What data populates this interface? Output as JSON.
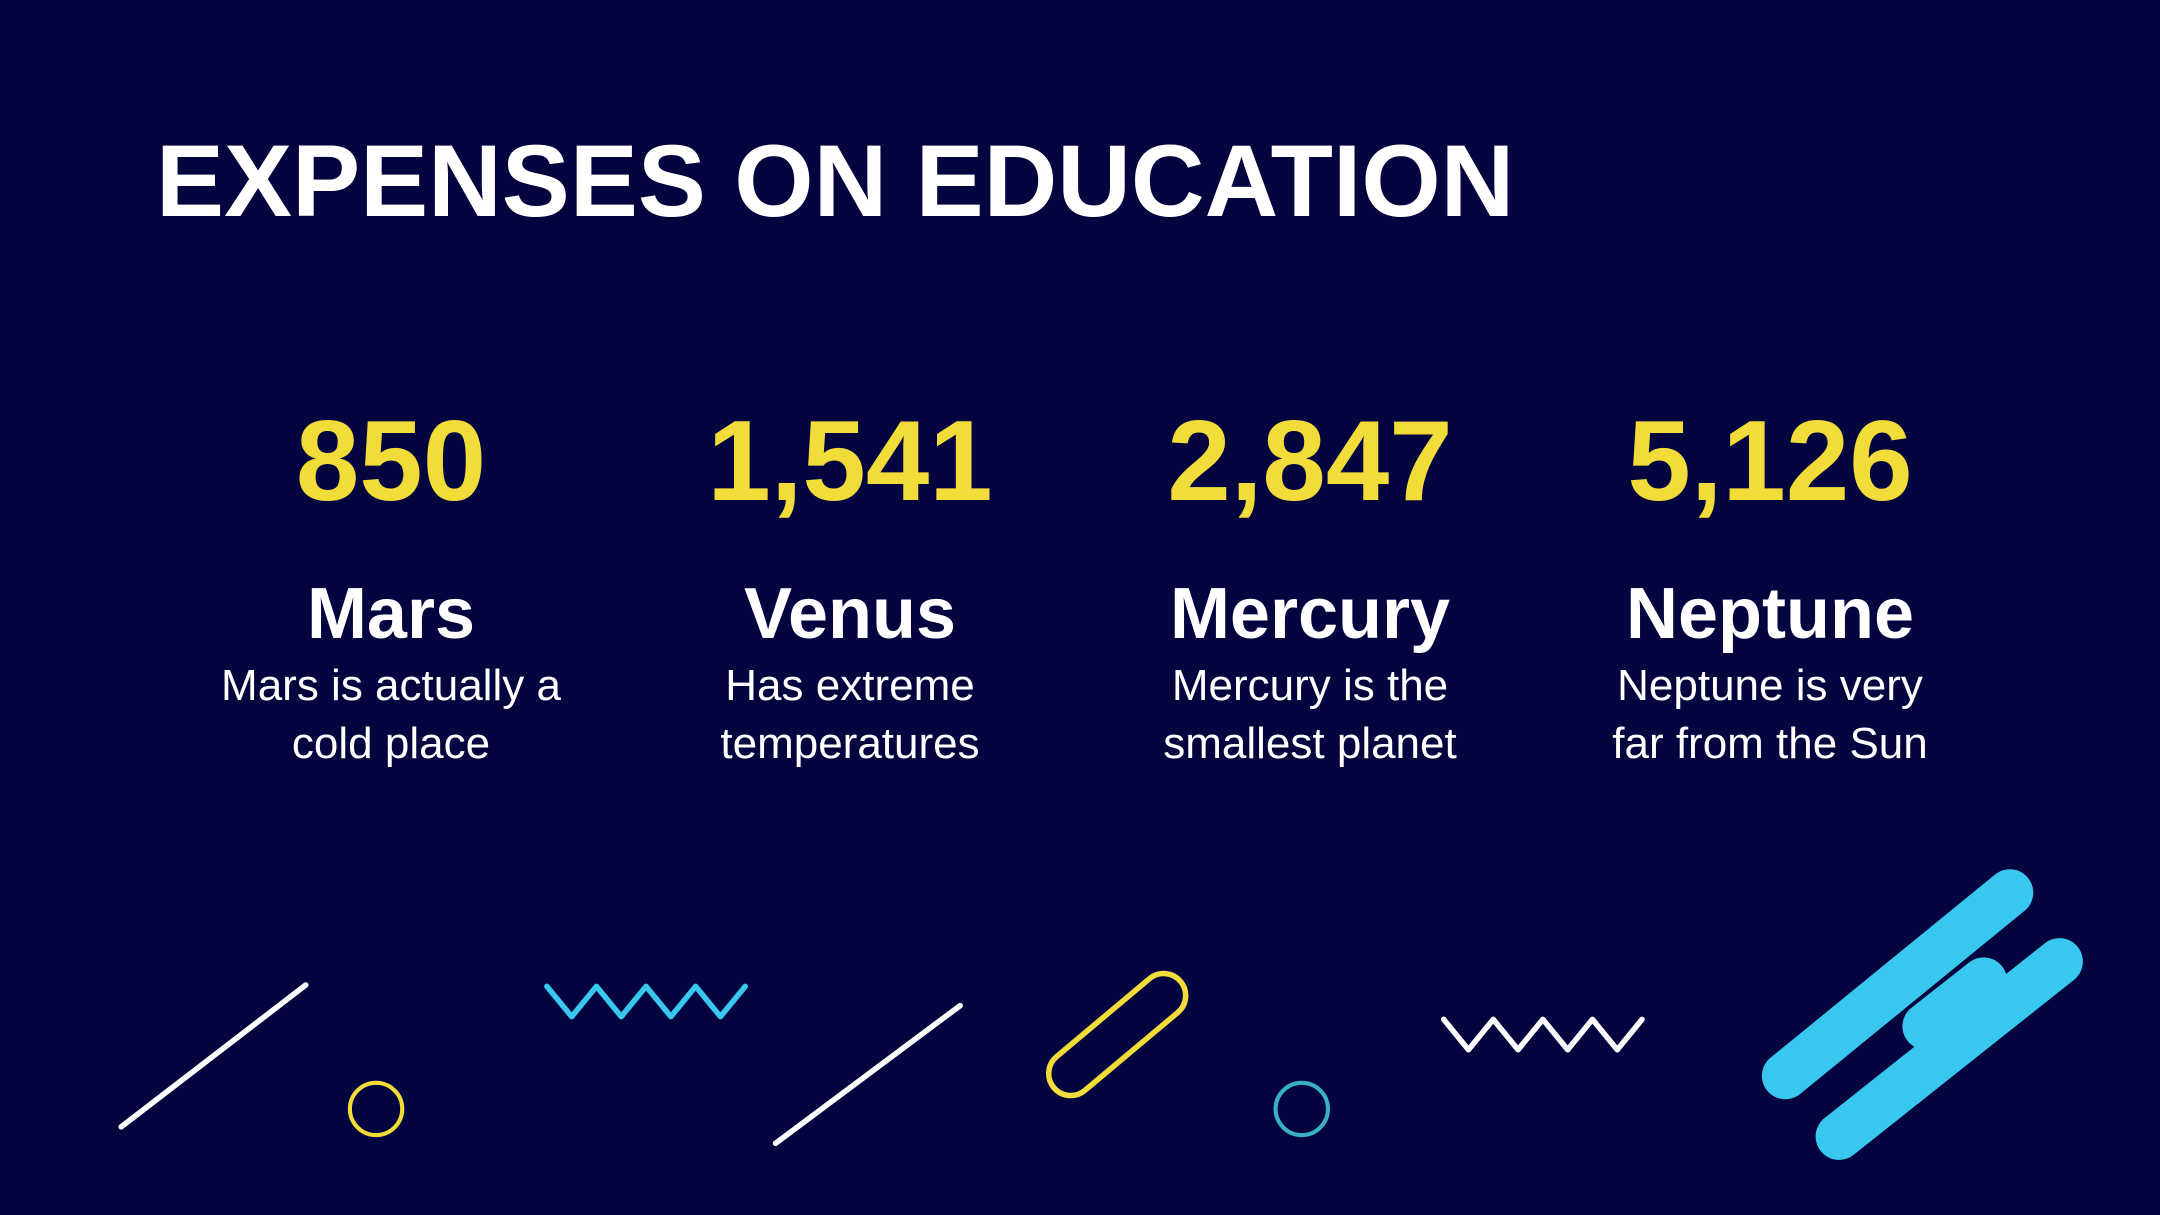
{
  "title": "EXPENSES ON EDUCATION",
  "stats": [
    {
      "value": "850",
      "name": "Mars",
      "description": [
        "Mars is actually a",
        "cold place"
      ]
    },
    {
      "value": "1,541",
      "name": "Venus",
      "description": [
        "Has extreme",
        "temperatures"
      ]
    },
    {
      "value": "2,847",
      "name": "Mercury",
      "description": [
        "Mercury is the",
        "smallest planet"
      ]
    },
    {
      "value": "5,126",
      "name": "Neptune",
      "description": [
        "Neptune is very",
        "far from the Sun"
      ]
    }
  ]
}
